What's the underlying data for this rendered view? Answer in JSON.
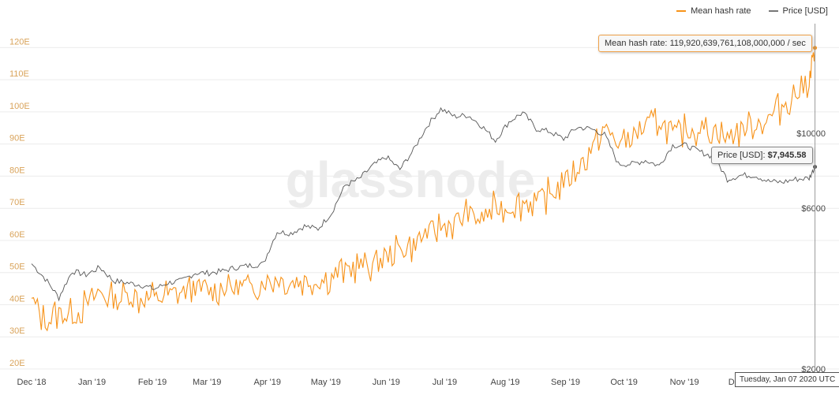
{
  "legend": {
    "hash_label": "Mean hash rate",
    "price_label": "Price [USD]"
  },
  "watermark": "glassnode",
  "tooltip_hash": {
    "label": "Mean hash rate:",
    "value": "119,920,639,761,108,000,000 / sec"
  },
  "tooltip_price": {
    "label": "Price [USD]:",
    "value": "$7,945.58"
  },
  "crosshair_date": "Tuesday, Jan 07 2020 UTC",
  "colors": {
    "hash": "#f7931a",
    "price": "#555555",
    "hash_axis": "#d9a35a",
    "grid": "#ececec"
  },
  "chart_data": {
    "type": "line",
    "x_tick_labels": [
      "Dec '18",
      "Jan '19",
      "Feb '19",
      "Mar '19",
      "Apr '19",
      "May '19",
      "Jun '19",
      "Jul '19",
      "Aug '19",
      "Sep '19",
      "Oct '19",
      "Nov '19",
      "Dec '19"
    ],
    "y_left": {
      "ticks": [
        "20E",
        "30E",
        "40E",
        "50E",
        "60E",
        "70E",
        "80E",
        "90E",
        "100E",
        "110E",
        "120E"
      ],
      "range": [
        20,
        125
      ],
      "unit": "E"
    },
    "y_right": {
      "ticks": [
        "$2000",
        "$6000",
        "$10000"
      ],
      "tick_values": [
        2000,
        6000,
        10000
      ],
      "scale": "log",
      "range": [
        2000,
        20000
      ]
    },
    "grid": "horizontal",
    "legend_position": "top-right",
    "x_range": [
      "2018-12-01",
      "2020-01-10"
    ],
    "series": [
      {
        "name": "Mean hash rate",
        "axis": "left",
        "points": [
          [
            "2018-12-01",
            42
          ],
          [
            "2018-12-08",
            34
          ],
          [
            "2018-12-15",
            38
          ],
          [
            "2018-12-22",
            36
          ],
          [
            "2018-12-29",
            40
          ],
          [
            "2019-01-05",
            44
          ],
          [
            "2019-01-12",
            41
          ],
          [
            "2019-01-19",
            43
          ],
          [
            "2019-01-26",
            42
          ],
          [
            "2019-02-02",
            42
          ],
          [
            "2019-02-09",
            43
          ],
          [
            "2019-02-16",
            44
          ],
          [
            "2019-02-23",
            45
          ],
          [
            "2019-03-02",
            44
          ],
          [
            "2019-03-09",
            45
          ],
          [
            "2019-03-16",
            46
          ],
          [
            "2019-03-23",
            45
          ],
          [
            "2019-03-30",
            47
          ],
          [
            "2019-04-06",
            48
          ],
          [
            "2019-04-13",
            47
          ],
          [
            "2019-04-20",
            48
          ],
          [
            "2019-04-27",
            47
          ],
          [
            "2019-05-04",
            49
          ],
          [
            "2019-05-11",
            51
          ],
          [
            "2019-05-18",
            52
          ],
          [
            "2019-05-25",
            53
          ],
          [
            "2019-06-01",
            55
          ],
          [
            "2019-06-08",
            57
          ],
          [
            "2019-06-15",
            59
          ],
          [
            "2019-06-22",
            62
          ],
          [
            "2019-06-29",
            64
          ],
          [
            "2019-07-06",
            66
          ],
          [
            "2019-07-13",
            68
          ],
          [
            "2019-07-20",
            67
          ],
          [
            "2019-07-27",
            70
          ],
          [
            "2019-08-03",
            70
          ],
          [
            "2019-08-10",
            72
          ],
          [
            "2019-08-17",
            72
          ],
          [
            "2019-08-24",
            74
          ],
          [
            "2019-08-31",
            78
          ],
          [
            "2019-09-07",
            82
          ],
          [
            "2019-09-14",
            88
          ],
          [
            "2019-09-21",
            95
          ],
          [
            "2019-09-28",
            90
          ],
          [
            "2019-10-05",
            92
          ],
          [
            "2019-10-12",
            96
          ],
          [
            "2019-10-19",
            97
          ],
          [
            "2019-10-26",
            93
          ],
          [
            "2019-11-02",
            94
          ],
          [
            "2019-11-09",
            95
          ],
          [
            "2019-11-16",
            95
          ],
          [
            "2019-11-23",
            92
          ],
          [
            "2019-11-30",
            95
          ],
          [
            "2019-12-07",
            96
          ],
          [
            "2019-12-14",
            98
          ],
          [
            "2019-12-21",
            102
          ],
          [
            "2019-12-28",
            105
          ],
          [
            "2020-01-04",
            110
          ],
          [
            "2020-01-07",
            119.92
          ]
        ]
      },
      {
        "name": "Price [USD]",
        "axis": "right",
        "points": [
          [
            "2018-12-01",
            4100
          ],
          [
            "2018-12-08",
            3700
          ],
          [
            "2018-12-15",
            3250
          ],
          [
            "2018-12-22",
            3900
          ],
          [
            "2018-12-29",
            3800
          ],
          [
            "2019-01-05",
            4000
          ],
          [
            "2019-01-12",
            3650
          ],
          [
            "2019-01-19",
            3600
          ],
          [
            "2019-01-26",
            3550
          ],
          [
            "2019-02-02",
            3450
          ],
          [
            "2019-02-09",
            3600
          ],
          [
            "2019-02-16",
            3650
          ],
          [
            "2019-02-23",
            3850
          ],
          [
            "2019-03-02",
            3850
          ],
          [
            "2019-03-09",
            3900
          ],
          [
            "2019-03-16",
            4000
          ],
          [
            "2019-03-23",
            4050
          ],
          [
            "2019-03-30",
            4100
          ],
          [
            "2019-04-06",
            5100
          ],
          [
            "2019-04-13",
            5050
          ],
          [
            "2019-04-20",
            5300
          ],
          [
            "2019-04-27",
            5200
          ],
          [
            "2019-05-04",
            5800
          ],
          [
            "2019-05-11",
            7000
          ],
          [
            "2019-05-18",
            7300
          ],
          [
            "2019-05-25",
            8000
          ],
          [
            "2019-06-01",
            8500
          ],
          [
            "2019-06-08",
            7800
          ],
          [
            "2019-06-15",
            8900
          ],
          [
            "2019-06-22",
            10500
          ],
          [
            "2019-06-29",
            11800
          ],
          [
            "2019-07-06",
            11200
          ],
          [
            "2019-07-13",
            11300
          ],
          [
            "2019-07-20",
            10500
          ],
          [
            "2019-07-27",
            9500
          ],
          [
            "2019-08-03",
            10800
          ],
          [
            "2019-08-10",
            11500
          ],
          [
            "2019-08-17",
            10300
          ],
          [
            "2019-08-24",
            10100
          ],
          [
            "2019-08-31",
            9600
          ],
          [
            "2019-09-07",
            10400
          ],
          [
            "2019-09-14",
            10300
          ],
          [
            "2019-09-21",
            9900
          ],
          [
            "2019-09-28",
            8100
          ],
          [
            "2019-10-05",
            8100
          ],
          [
            "2019-10-12",
            8300
          ],
          [
            "2019-10-19",
            8000
          ],
          [
            "2019-10-26",
            9200
          ],
          [
            "2019-11-02",
            9200
          ],
          [
            "2019-11-09",
            8800
          ],
          [
            "2019-11-16",
            8500
          ],
          [
            "2019-11-23",
            7300
          ],
          [
            "2019-11-30",
            7500
          ],
          [
            "2019-12-07",
            7500
          ],
          [
            "2019-12-14",
            7200
          ],
          [
            "2019-12-21",
            7150
          ],
          [
            "2019-12-28",
            7300
          ],
          [
            "2020-01-04",
            7350
          ],
          [
            "2020-01-07",
            7945.58
          ]
        ]
      }
    ]
  }
}
